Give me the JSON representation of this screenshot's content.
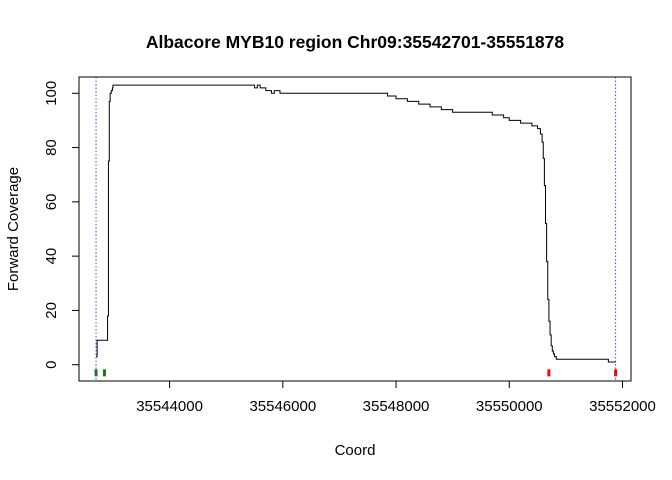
{
  "chart_data": {
    "type": "line",
    "title": "Albacore MYB10 region Chr09:35542701-35551878",
    "xlabel": "Coord",
    "ylabel": "Forward Coverage",
    "xlim": [
      35542400,
      35552150
    ],
    "ylim": [
      -6,
      106
    ],
    "xticks": [
      35544000,
      35546000,
      35548000,
      35550000,
      35552000
    ],
    "xtick_labels": [
      "35544000",
      "35546000",
      "35548000",
      "35550000",
      "35552000"
    ],
    "yticks": [
      0,
      20,
      40,
      60,
      80,
      100
    ],
    "ytick_labels": [
      "0",
      "20",
      "40",
      "60",
      "80",
      "100"
    ],
    "grid": false,
    "colors": {
      "line": "#000000",
      "vlines": "#4444ff",
      "green_marks": "#1a7a1a",
      "red_marks": "#ff0000"
    },
    "vlines": [
      35542701,
      35551878
    ],
    "series": [
      {
        "x": [
          35542701,
          35542720,
          35542730,
          35542900,
          35542905,
          35542920,
          35542935,
          35542950,
          35542970,
          35542990,
          35543000,
          35544100,
          35544500,
          35544700,
          35545500,
          35545550,
          35545600,
          35545700,
          35545800,
          35545850,
          35545950,
          35547400,
          35547850,
          35548000,
          35548200,
          35548400,
          35548600,
          35548800,
          35549000,
          35549100,
          35549400,
          35549700,
          35549900,
          35550000,
          35550200,
          35550400,
          35550500,
          35550550,
          35550580,
          35550600,
          35550620,
          35550640,
          35550660,
          35550680,
          35550700,
          35550720,
          35550740,
          35550760,
          35550780,
          35550800,
          35550830,
          35550900,
          35551750,
          35551878
        ],
        "y": [
          3,
          9,
          9,
          9,
          18,
          75,
          97,
          100,
          101,
          102,
          103,
          103,
          103,
          103,
          102,
          103,
          102,
          101,
          100,
          101,
          100,
          100,
          99,
          98,
          97,
          96,
          95,
          94,
          93,
          93,
          93,
          92,
          91,
          90,
          89,
          88,
          87,
          85,
          82,
          76,
          66,
          52,
          38,
          24,
          16,
          11,
          7,
          5,
          4,
          3,
          2,
          2,
          1,
          1
        ]
      }
    ],
    "markers": [
      {
        "x": 35542701,
        "y": -3,
        "color": "#1a7a1a"
      },
      {
        "x": 35542850,
        "y": -3,
        "color": "#1a7a1a"
      },
      {
        "x": 35550700,
        "y": -3,
        "color": "#ff0000"
      },
      {
        "x": 35551878,
        "y": -3,
        "color": "#ff0000"
      }
    ]
  }
}
